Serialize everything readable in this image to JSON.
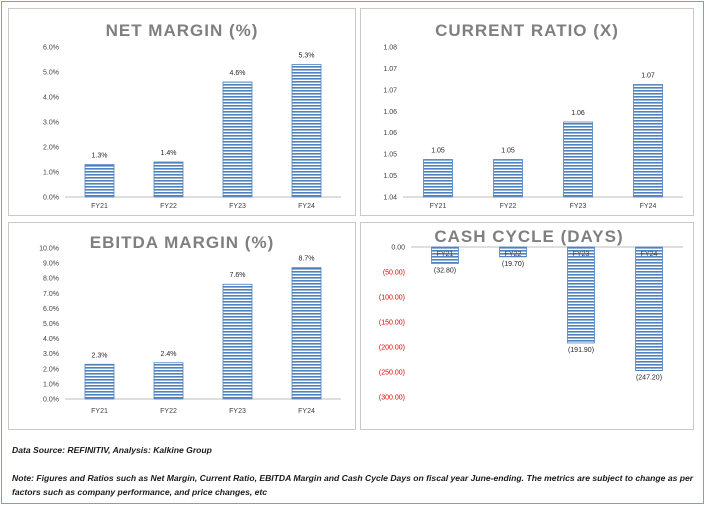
{
  "chart_data": [
    {
      "id": "net",
      "type": "bar",
      "title": "NET MARGIN (%)",
      "categories": [
        "FY21",
        "FY22",
        "FY23",
        "FY24"
      ],
      "values": [
        1.3,
        1.4,
        4.6,
        5.3
      ],
      "value_labels": [
        "1.3%",
        "1.4%",
        "4.6%",
        "5.3%"
      ],
      "yticks": [
        "0.0%",
        "1.0%",
        "2.0%",
        "3.0%",
        "4.0%",
        "5.0%",
        "6.0%"
      ],
      "ylim": [
        0,
        6
      ]
    },
    {
      "id": "cr",
      "type": "bar",
      "title": "CURRENT RATIO (X)",
      "categories": [
        "FY21",
        "FY22",
        "FY23",
        "FY24"
      ],
      "values": [
        1.05,
        1.05,
        1.06,
        1.07
      ],
      "value_labels": [
        "1.05",
        "1.05",
        "1.06",
        "1.07"
      ],
      "yticks": [
        "1.04",
        "1.05",
        "1.05",
        "1.06",
        "1.06",
        "1.07",
        "1.07",
        "1.08"
      ],
      "ylim": [
        1.04,
        1.08
      ]
    },
    {
      "id": "ebitda",
      "type": "bar",
      "title": "EBITDA MARGIN (%)",
      "categories": [
        "FY21",
        "FY22",
        "FY23",
        "FY24"
      ],
      "values": [
        2.3,
        2.4,
        7.6,
        8.7
      ],
      "value_labels": [
        "2.3%",
        "2.4%",
        "7.6%",
        "8.7%"
      ],
      "yticks": [
        "0.0%",
        "1.0%",
        "2.0%",
        "3.0%",
        "4.0%",
        "5.0%",
        "6.0%",
        "7.0%",
        "8.0%",
        "9.0%",
        "10.0%"
      ],
      "ylim": [
        0,
        10
      ]
    },
    {
      "id": "cash",
      "type": "bar",
      "title": "CASH CYCLE (DAYS)",
      "categories": [
        "FY21",
        "FY22",
        "FY23",
        "FY24"
      ],
      "values": [
        -32.8,
        -19.7,
        -191.9,
        -247.2
      ],
      "value_labels": [
        "(32.80)",
        "(19.70)",
        "(191.90)",
        "(247.20)"
      ],
      "yticks": [
        "0.00",
        "(50.00)",
        "(100.00)",
        "(150.00)",
        "(200.00)",
        "(250.00)",
        "(300.00)"
      ],
      "ylim": [
        -300,
        0
      ],
      "bar_color": "#4f81bd"
    }
  ],
  "footer": {
    "source": "Data Source: REFINITIV, Analysis: Kalkine Group",
    "note": "Note: Figures and Ratios such as Net Margin, Current Ratio, EBITDA Margin and Cash Cycle Days on fiscal year June-ending. The metrics are subject to change as per factors such as company performance, and price changes, etc"
  },
  "colors": {
    "bar": "#4f81bd",
    "negative": "#e00000",
    "title": "#7f7f7f"
  }
}
